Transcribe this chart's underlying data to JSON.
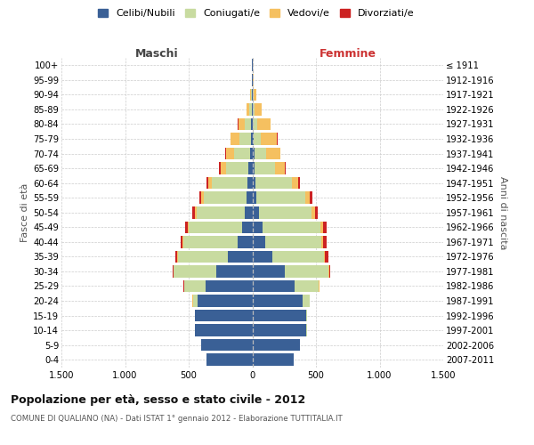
{
  "age_groups": [
    "100+",
    "95-99",
    "90-94",
    "85-89",
    "80-84",
    "75-79",
    "70-74",
    "65-69",
    "60-64",
    "55-59",
    "50-54",
    "45-49",
    "40-44",
    "35-39",
    "30-34",
    "25-29",
    "20-24",
    "15-19",
    "10-14",
    "5-9",
    "0-4"
  ],
  "birth_years": [
    "≤ 1911",
    "1912-1916",
    "1917-1921",
    "1922-1926",
    "1927-1931",
    "1932-1936",
    "1937-1941",
    "1942-1946",
    "1947-1951",
    "1952-1956",
    "1957-1961",
    "1962-1966",
    "1967-1971",
    "1972-1976",
    "1977-1981",
    "1982-1986",
    "1987-1991",
    "1992-1996",
    "1997-2001",
    "2002-2006",
    "2007-2011"
  ],
  "male": {
    "celibe": [
      2,
      2,
      3,
      5,
      8,
      12,
      20,
      28,
      35,
      42,
      58,
      82,
      115,
      195,
      280,
      370,
      430,
      450,
      450,
      400,
      360
    ],
    "coniugato": [
      0,
      2,
      5,
      18,
      50,
      88,
      125,
      175,
      280,
      340,
      380,
      415,
      425,
      390,
      340,
      165,
      38,
      4,
      2,
      2,
      0
    ],
    "vedovo": [
      0,
      2,
      8,
      22,
      52,
      68,
      58,
      48,
      28,
      18,
      14,
      10,
      7,
      4,
      2,
      2,
      1,
      0,
      0,
      0,
      0
    ],
    "divorziato": [
      0,
      0,
      0,
      0,
      2,
      4,
      8,
      10,
      15,
      18,
      18,
      20,
      18,
      14,
      7,
      4,
      2,
      0,
      0,
      0,
      0
    ]
  },
  "female": {
    "nubile": [
      2,
      2,
      3,
      4,
      6,
      10,
      15,
      20,
      26,
      33,
      52,
      78,
      98,
      160,
      255,
      335,
      395,
      425,
      425,
      375,
      325
    ],
    "coniugata": [
      0,
      2,
      5,
      12,
      30,
      55,
      95,
      155,
      285,
      385,
      415,
      455,
      445,
      405,
      345,
      188,
      53,
      7,
      2,
      2,
      0
    ],
    "vedova": [
      0,
      5,
      20,
      58,
      108,
      128,
      108,
      78,
      48,
      33,
      28,
      22,
      14,
      8,
      4,
      2,
      1,
      0,
      0,
      0,
      0
    ],
    "divorziata": [
      0,
      0,
      0,
      0,
      2,
      3,
      5,
      8,
      18,
      20,
      22,
      30,
      28,
      24,
      9,
      4,
      2,
      0,
      0,
      0,
      0
    ]
  },
  "colors": {
    "celibe": "#3a6096",
    "coniugato": "#c8dba0",
    "vedovo": "#f5c060",
    "divorziato": "#cc2222"
  },
  "xlim": 1500,
  "title": "Popolazione per età, sesso e stato civile - 2012",
  "subtitle": "COMUNE DI QUALIANO (NA) - Dati ISTAT 1° gennaio 2012 - Elaborazione TUTTITALIA.IT",
  "ylabel_left": "Fasce di età",
  "ylabel_right": "Anni di nascita",
  "label_maschi": "Maschi",
  "label_femmine": "Femmine",
  "bg_color": "#ffffff",
  "grid_color": "#cccccc",
  "legend": [
    "Celibi/Nubili",
    "Coniugati/e",
    "Vedovi/e",
    "Divorziati/e"
  ]
}
